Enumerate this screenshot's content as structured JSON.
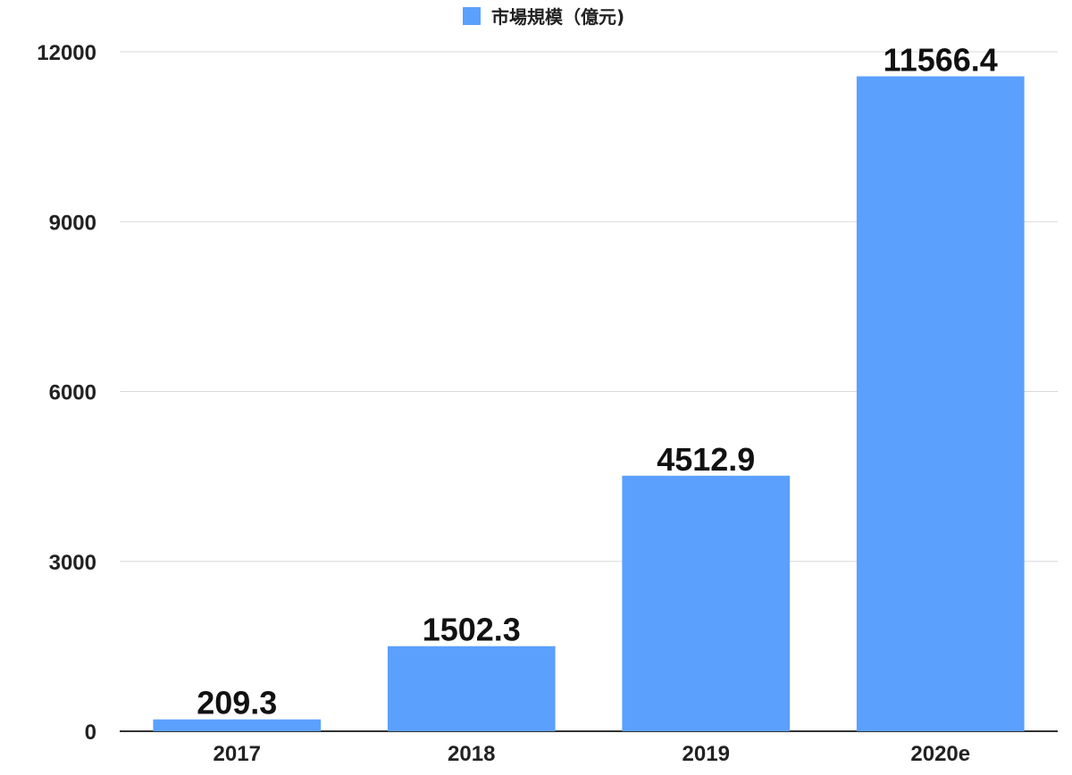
{
  "chart_data": {
    "type": "bar",
    "categories": [
      "2017",
      "2018",
      "2019",
      "2020e"
    ],
    "series": [
      {
        "name": "市場規模（億元)",
        "values": [
          209.3,
          1502.3,
          4512.9,
          11566.4
        ],
        "color": "#5BA0FD"
      }
    ],
    "data_labels": [
      "209.3",
      "1502.3",
      "4512.9",
      "11566.4"
    ],
    "y_ticks": [
      0,
      3000,
      6000,
      9000,
      12000
    ],
    "ylim": [
      0,
      12000
    ],
    "grid": true,
    "legend": "top-center",
    "title": "",
    "xlabel": "",
    "ylabel": ""
  }
}
